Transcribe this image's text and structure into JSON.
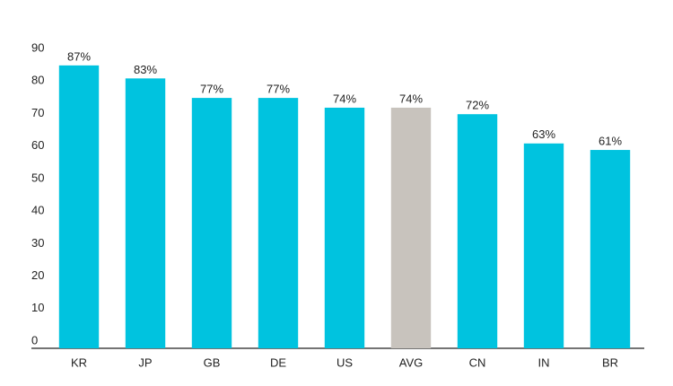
{
  "chart_data": {
    "type": "bar",
    "categories": [
      "KR",
      "JP",
      "GB",
      "DE",
      "US",
      "AVG",
      "CN",
      "IN",
      "BR"
    ],
    "values": [
      87,
      83,
      77,
      77,
      74,
      74,
      72,
      63,
      61
    ],
    "value_labels": [
      "87%",
      "83%",
      "77%",
      "77%",
      "74%",
      "74%",
      "72%",
      "63%",
      "61%"
    ],
    "colors": [
      "#00c3df",
      "#00c3df",
      "#00c3df",
      "#00c3df",
      "#00c3df",
      "#c8c3bd",
      "#00c3df",
      "#00c3df",
      "#00c3df"
    ],
    "ylim": [
      0,
      90
    ],
    "yticks": [
      0,
      10,
      20,
      30,
      40,
      50,
      60,
      70,
      80,
      90
    ],
    "grid": false
  }
}
